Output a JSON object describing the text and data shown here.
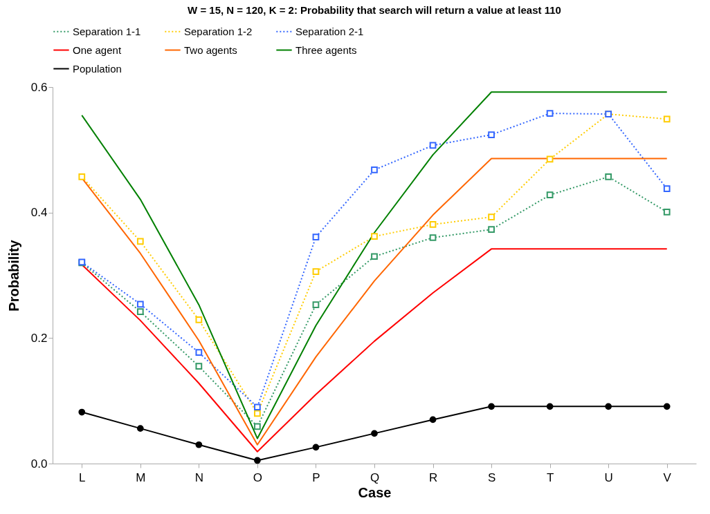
{
  "chart_data": {
    "type": "line",
    "title": "W = 15, N = 120, K = 2:  Probability that search will return a value at least 110",
    "xlabel": "Case",
    "ylabel": "Probability",
    "categories": [
      "L",
      "M",
      "N",
      "O",
      "P",
      "Q",
      "R",
      "S",
      "T",
      "U",
      "V"
    ],
    "series": [
      {
        "name": "Separation 1-1",
        "color": "#339966",
        "line_style": "dotted",
        "marker": "square",
        "values": [
          0.32,
          0.242,
          0.155,
          0.059,
          0.253,
          0.33,
          0.36,
          0.373,
          0.428,
          0.457,
          0.401
        ]
      },
      {
        "name": "Separation 1-2",
        "color": "#ffcc00",
        "line_style": "dotted",
        "marker": "square",
        "values": [
          0.457,
          0.354,
          0.229,
          0.08,
          0.306,
          0.362,
          0.381,
          0.393,
          0.485,
          0.557,
          0.549
        ]
      },
      {
        "name": "Separation 2-1",
        "color": "#3366ff",
        "line_style": "dotted",
        "marker": "square",
        "values": [
          0.321,
          0.254,
          0.177,
          0.09,
          0.361,
          0.468,
          0.507,
          0.524,
          0.558,
          0.557,
          0.438
        ]
      },
      {
        "name": "One agent",
        "color": "#ff0000",
        "line_style": "solid",
        "marker": "none",
        "values": [
          0.317,
          0.228,
          0.128,
          0.019,
          0.11,
          0.195,
          0.272,
          0.342,
          0.342,
          0.342,
          0.342
        ]
      },
      {
        "name": "Two agents",
        "color": "#ff6600",
        "line_style": "solid",
        "marker": "none",
        "values": [
          0.455,
          0.335,
          0.196,
          0.03,
          0.17,
          0.291,
          0.396,
          0.486,
          0.486,
          0.486,
          0.486
        ]
      },
      {
        "name": "Three agents",
        "color": "#008000",
        "line_style": "solid",
        "marker": "none",
        "values": [
          0.555,
          0.421,
          0.253,
          0.04,
          0.22,
          0.368,
          0.492,
          0.592,
          0.592,
          0.592,
          0.592
        ]
      },
      {
        "name": "Population",
        "color": "#000000",
        "line_style": "solid",
        "marker": "circle",
        "values": [
          0.082,
          0.056,
          0.03,
          0.005,
          0.026,
          0.048,
          0.07,
          0.091,
          0.091,
          0.091,
          0.091
        ]
      }
    ],
    "ylim": [
      0,
      0.6
    ],
    "yticks": [
      {
        "value": 0,
        "label": "0.0"
      },
      {
        "value": 0.2,
        "label": "0.2"
      },
      {
        "value": 0.4,
        "label": "0.4"
      },
      {
        "value": 0.6,
        "label": "0.6"
      }
    ],
    "grid": false,
    "legend": "top"
  }
}
